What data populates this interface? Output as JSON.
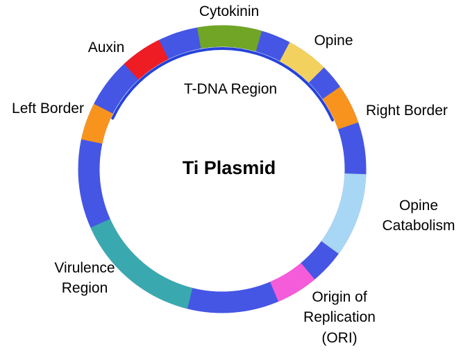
{
  "diagram": {
    "center_label": "Ti Plasmid",
    "ring": {
      "color": "#4556e4"
    },
    "tdna": {
      "label": "T-DNA Region",
      "color": "#2643d9",
      "start": -65,
      "end": 66
    },
    "segments": [
      {
        "id": "cytokinin",
        "color": "#70a526",
        "start": -10,
        "end": 16
      },
      {
        "id": "opine",
        "color": "#f3d15f",
        "start": 28,
        "end": 45
      },
      {
        "id": "right-border",
        "color": "#f8941e",
        "start": 55,
        "end": 71
      },
      {
        "id": "opine-catabolism",
        "color": "#a8d7f5",
        "start": 92,
        "end": 126
      },
      {
        "id": "ori",
        "color": "#f55cd9",
        "start": 140,
        "end": 157
      },
      {
        "id": "virulence-region",
        "color": "#3aa9af",
        "start": 194,
        "end": 246
      },
      {
        "id": "left-border",
        "color": "#f8941e",
        "start": 282,
        "end": 297
      },
      {
        "id": "auxin",
        "color": "#ee1c23",
        "start": 317,
        "end": 334
      }
    ],
    "labels": {
      "cytokinin": "Cytokinin",
      "opine": "Opine",
      "auxin": "Auxin",
      "left_border": "Left Border",
      "right_border": "Right Border",
      "opine_catabolism": "Opine Catabolism",
      "ori": "Origin of Replication (ORI)",
      "virulence": "Virulence Region"
    }
  }
}
